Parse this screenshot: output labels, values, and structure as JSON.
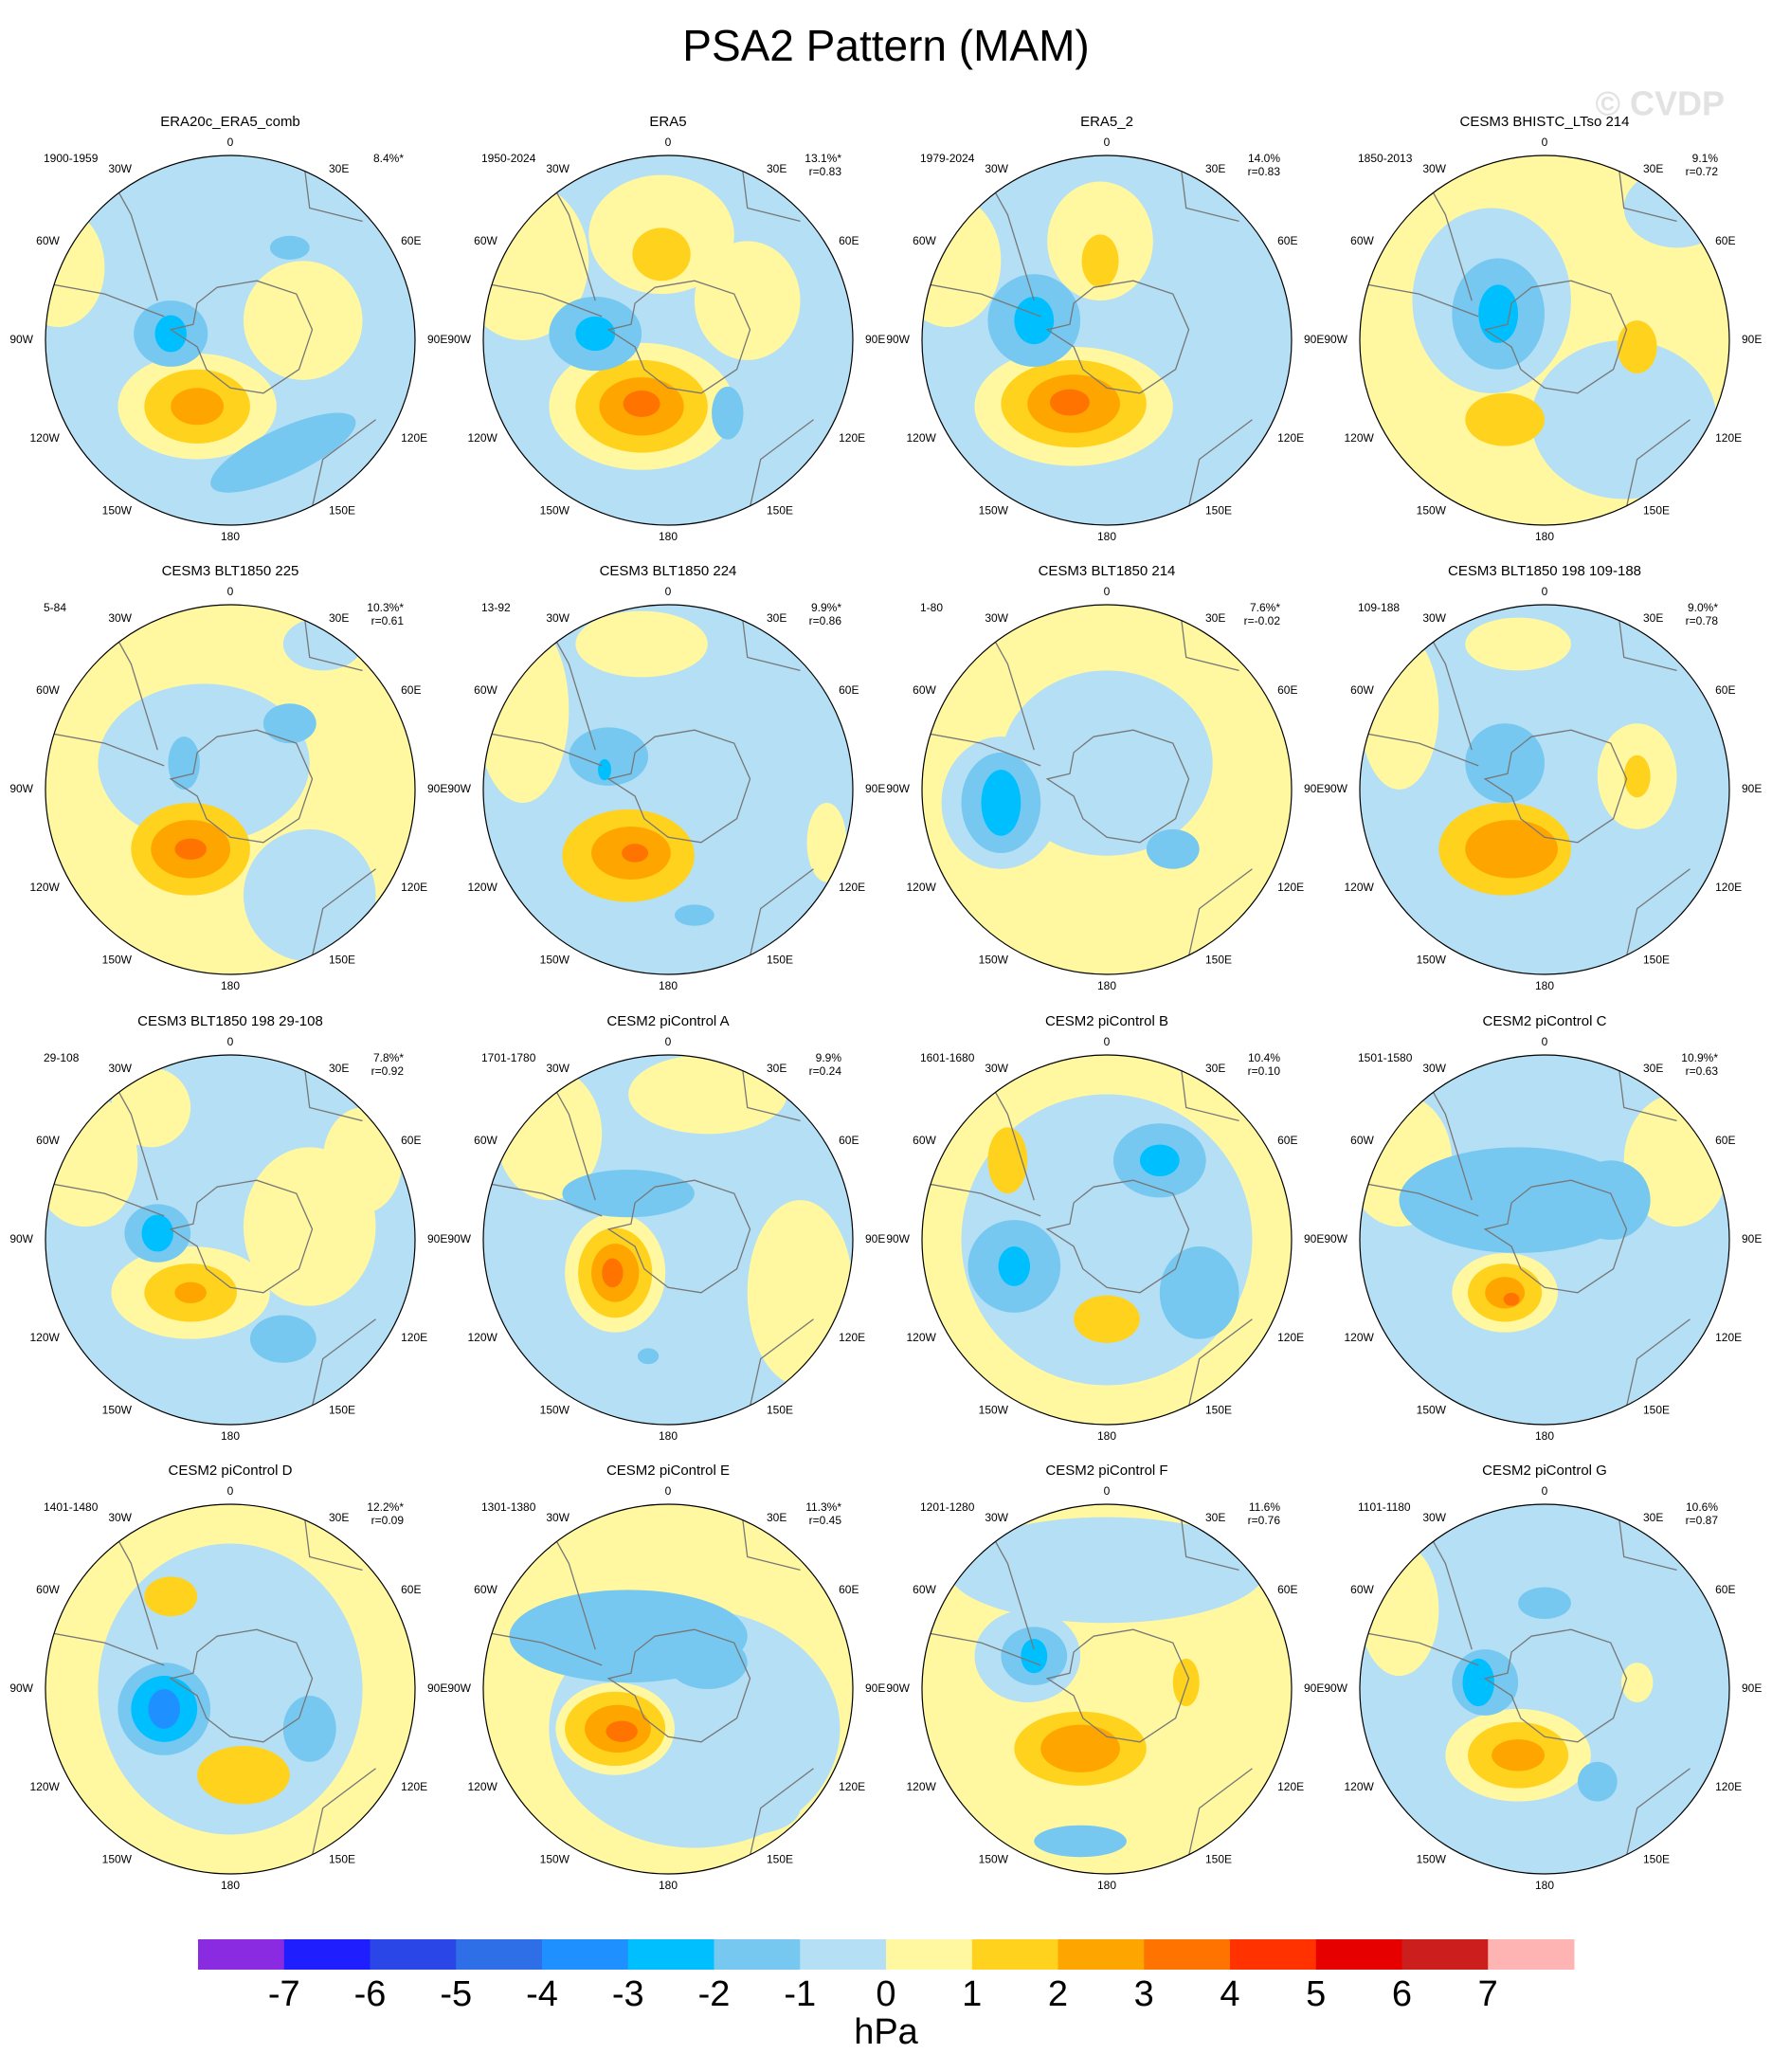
{
  "title": "PSA2 Pattern (MAM)",
  "watermark": "© CVDP",
  "lon_labels": [
    "0",
    "30E",
    "60E",
    "90E",
    "120E",
    "150E",
    "180",
    "150W",
    "120W",
    "90W",
    "60W",
    "30W"
  ],
  "panels": [
    {
      "title": "ERA20c_ERA5_comb",
      "period": "1900-1959",
      "variance": "8.4%*"
    },
    {
      "title": "ERA5",
      "period": "1950-2024",
      "variance": "13.1%*",
      "r": "r=0.83"
    },
    {
      "title": "ERA5_2",
      "period": "1979-2024",
      "variance": "14.0%",
      "r": "r=0.83"
    },
    {
      "title": "CESM3 BHISTC_LTso 214",
      "period": "1850-2013",
      "variance": "9.1%",
      "r": "r=0.72"
    },
    {
      "title": "CESM3 BLT1850 225",
      "period": "5-84",
      "variance": "10.3%*",
      "r": "r=0.61"
    },
    {
      "title": "CESM3 BLT1850 224",
      "period": "13-92",
      "variance": "9.9%*",
      "r": "r=0.86"
    },
    {
      "title": "CESM3 BLT1850 214",
      "period": "1-80",
      "variance": "7.6%*",
      "r": "r=-0.02"
    },
    {
      "title": "CESM3 BLT1850 198 109-188",
      "period": "109-188",
      "variance": "9.0%*",
      "r": "r=0.78"
    },
    {
      "title": "CESM3 BLT1850 198 29-108",
      "period": "29-108",
      "variance": "7.8%*",
      "r": "r=0.92"
    },
    {
      "title": "CESM2 piControl A",
      "period": "1701-1780",
      "variance": "9.9%",
      "r": "r=0.24"
    },
    {
      "title": "CESM2 piControl B",
      "period": "1601-1680",
      "variance": "10.4%",
      "r": "r=0.10"
    },
    {
      "title": "CESM2 piControl C",
      "period": "1501-1580",
      "variance": "10.9%*",
      "r": "r=0.63"
    },
    {
      "title": "CESM2 piControl D",
      "period": "1401-1480",
      "variance": "12.2%*",
      "r": "r=0.09"
    },
    {
      "title": "CESM2 piControl E",
      "period": "1301-1380",
      "variance": "11.3%*",
      "r": "r=0.45"
    },
    {
      "title": "CESM2 piControl F",
      "period": "1201-1280",
      "variance": "11.6%",
      "r": "r=0.76"
    },
    {
      "title": "CESM2 piControl G",
      "period": "1101-1180",
      "variance": "10.6%",
      "r": "r=0.87"
    }
  ],
  "colorbar": {
    "colors": [
      "#8a2be2",
      "#1e1eff",
      "#2a46e6",
      "#2e6fe8",
      "#1e90ff",
      "#00bfff",
      "#76c8f0",
      "#b4dff5",
      "#fff8a0",
      "#ffd21e",
      "#ffa500",
      "#ff7300",
      "#ff3200",
      "#e60000",
      "#cd1e1e",
      "#ffb4b4"
    ],
    "ticks": [
      -7,
      -6,
      -5,
      -4,
      -3,
      -2,
      -1,
      0,
      1,
      2,
      3,
      4,
      5,
      6,
      7
    ],
    "unit": "hPa"
  }
}
